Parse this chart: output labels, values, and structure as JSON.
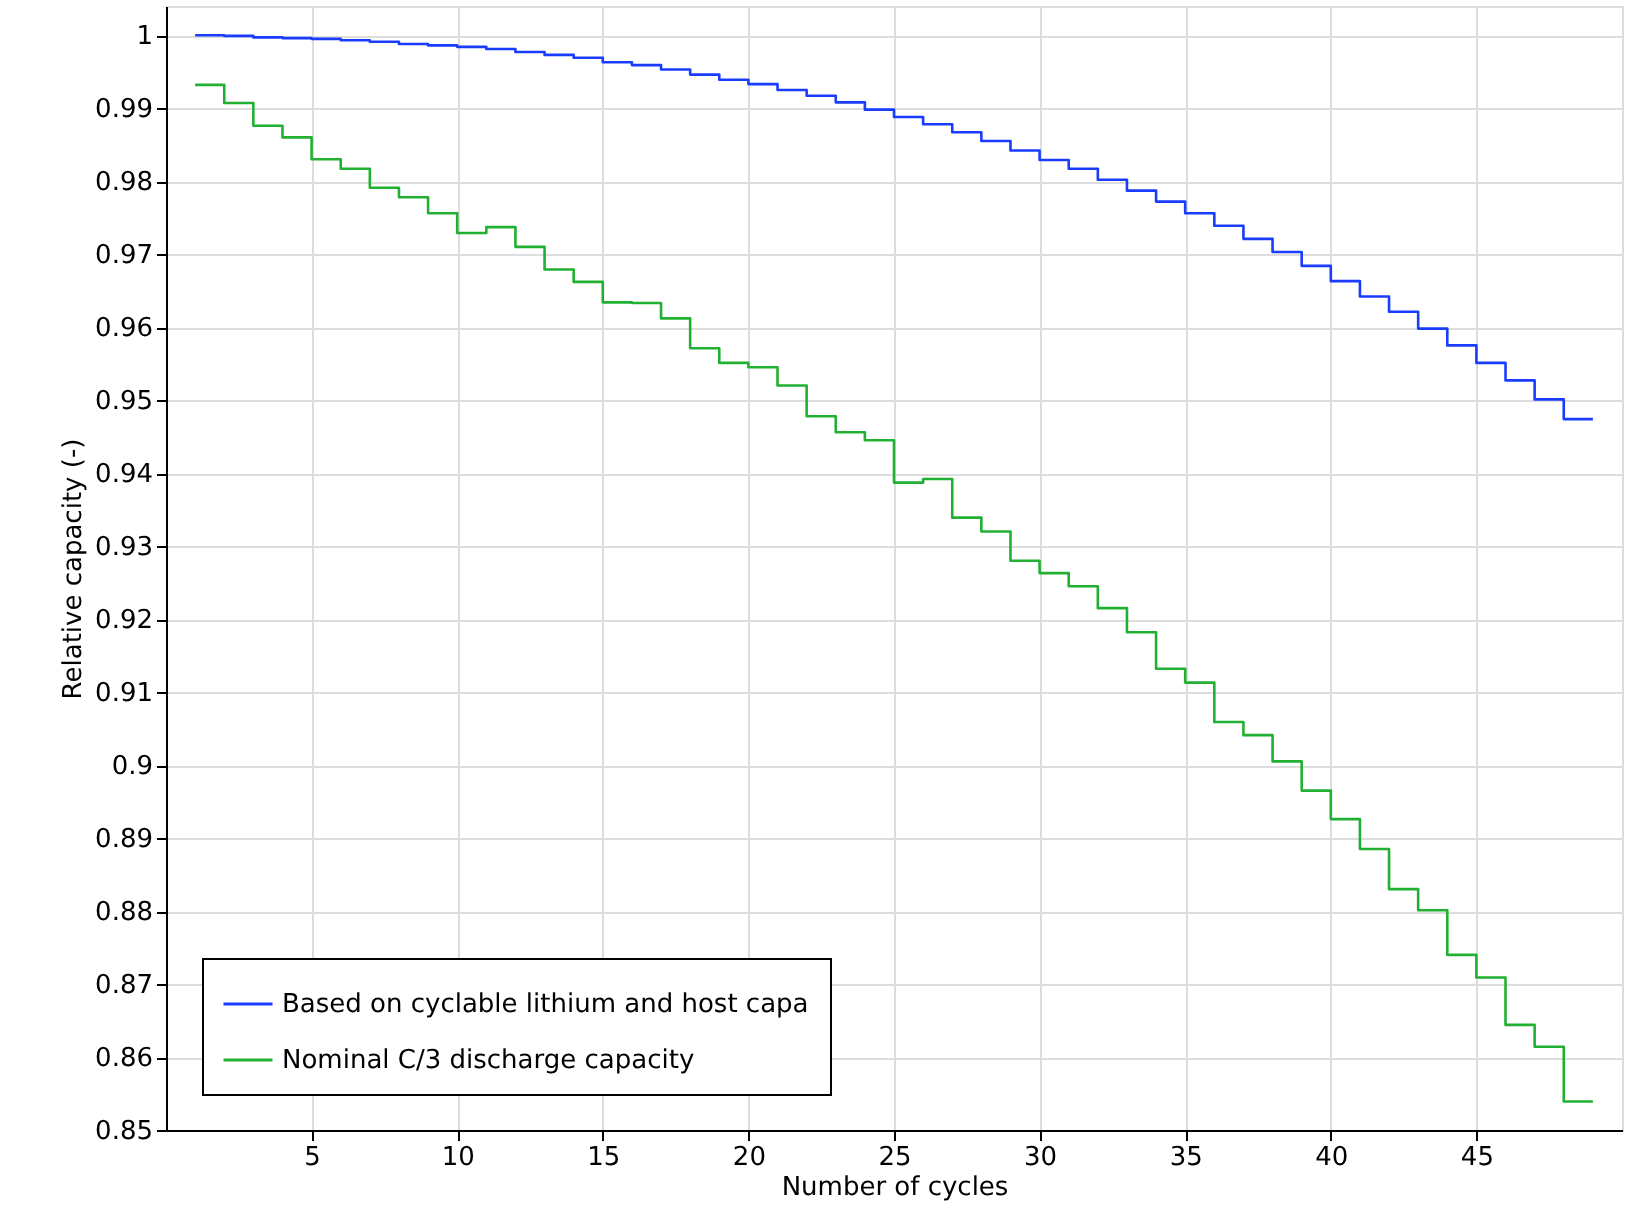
{
  "chart_data": {
    "type": "step",
    "xlabel": "Number of cycles",
    "ylabel": "Relative capacity (-)",
    "xlim": [
      0,
      50
    ],
    "ylim": [
      0.85,
      1.004
    ],
    "xticks": [
      5,
      10,
      15,
      20,
      25,
      30,
      35,
      40,
      45
    ],
    "yticks": [
      0.85,
      0.86,
      0.87,
      0.88,
      0.89,
      0.9,
      0.91,
      0.92,
      0.93,
      0.94,
      0.95,
      0.96,
      0.97,
      0.98,
      0.99,
      1
    ],
    "grid": true,
    "legend": "bottom left",
    "x": [
      1,
      2,
      3,
      4,
      5,
      6,
      7,
      8,
      9,
      10,
      11,
      12,
      13,
      14,
      15,
      16,
      17,
      18,
      19,
      20,
      21,
      22,
      23,
      24,
      25,
      26,
      27,
      28,
      29,
      30,
      31,
      32,
      33,
      34,
      35,
      36,
      37,
      38,
      39,
      40,
      41,
      42,
      43,
      44,
      45,
      46,
      47,
      48,
      49
    ],
    "series": [
      {
        "name": "Based on cyclable lithium and host capa",
        "color": "#1a3cff",
        "values": [
          1.0,
          0.9999,
          0.9997,
          0.9996,
          0.9995,
          0.9993,
          0.9991,
          0.9988,
          0.9986,
          0.9984,
          0.9981,
          0.9977,
          0.9973,
          0.9969,
          0.9963,
          0.9959,
          0.9953,
          0.9946,
          0.9939,
          0.9933,
          0.9925,
          0.9917,
          0.9908,
          0.9898,
          0.9888,
          0.9878,
          0.9867,
          0.9855,
          0.9842,
          0.9829,
          0.9817,
          0.9802,
          0.9787,
          0.9772,
          0.9756,
          0.9739,
          0.9721,
          0.9703,
          0.9684,
          0.9663,
          0.9642,
          0.9621,
          0.9598,
          0.9575,
          0.9551,
          0.9527,
          0.9501,
          0.9474,
          0.9474
        ]
      },
      {
        "name": "Nominal C/3 discharge capacity",
        "color": "#22b033",
        "values": [
          0.9932,
          0.9907,
          0.9876,
          0.986,
          0.983,
          0.9817,
          0.9791,
          0.9778,
          0.9756,
          0.9729,
          0.9737,
          0.971,
          0.9679,
          0.9662,
          0.9634,
          0.9633,
          0.9612,
          0.9571,
          0.9551,
          0.9545,
          0.952,
          0.9478,
          0.9456,
          0.9445,
          0.9387,
          0.9392,
          0.9339,
          0.932,
          0.928,
          0.9263,
          0.9245,
          0.9215,
          0.9182,
          0.9132,
          0.9113,
          0.9059,
          0.9041,
          0.9005,
          0.8965,
          0.8926,
          0.8885,
          0.883,
          0.8801,
          0.874,
          0.8709,
          0.8644,
          0.8614,
          0.8539,
          0.8539
        ]
      }
    ]
  }
}
